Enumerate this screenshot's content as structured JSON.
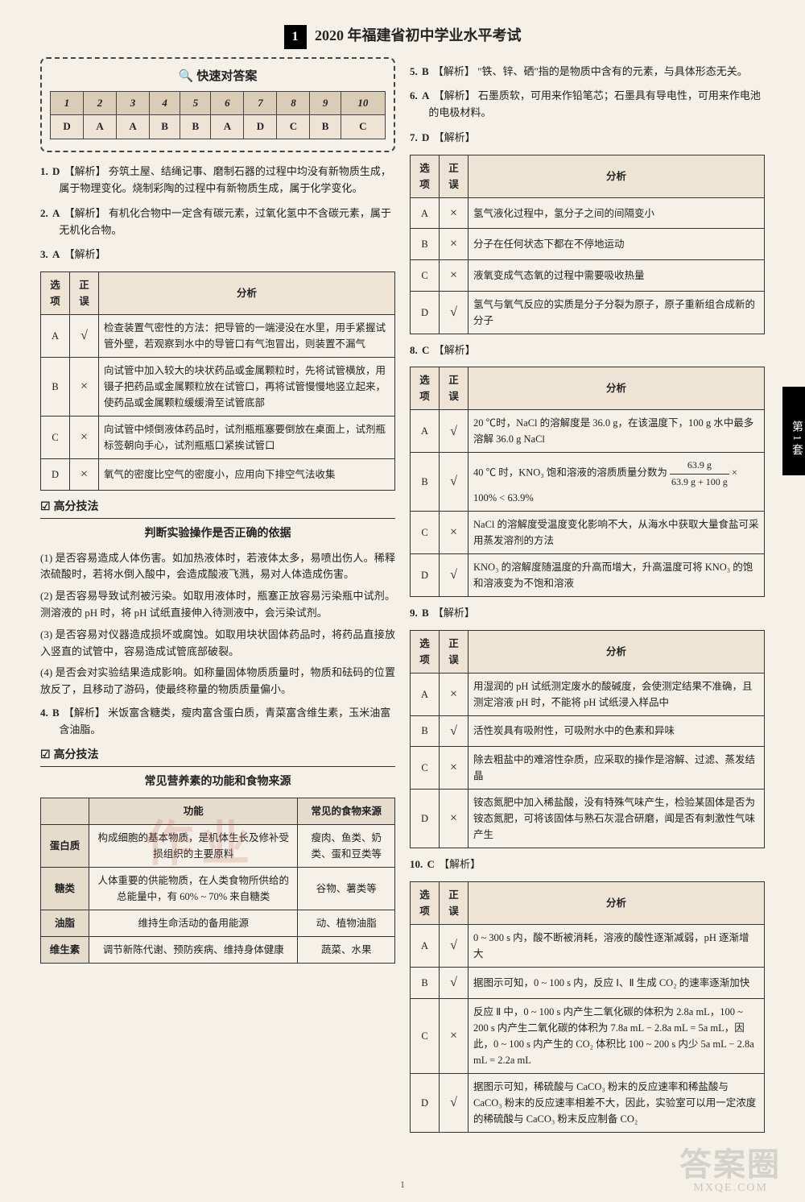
{
  "page": {
    "tag": "1",
    "title": "2020 年福建省初中学业水平考试",
    "footer": "1",
    "side_tab": "第1套"
  },
  "answer_card": {
    "title": "快速对答案",
    "numbers": [
      "1",
      "2",
      "3",
      "4",
      "5",
      "6",
      "7",
      "8",
      "9",
      "10"
    ],
    "answers": [
      "D",
      "A",
      "A",
      "B",
      "B",
      "A",
      "D",
      "C",
      "B",
      "C"
    ]
  },
  "items_left": {
    "q1": {
      "num": "1.",
      "ans": "D",
      "ex": "【解析】",
      "text": "夯筑土屋、结绳记事、磨制石器的过程中均没有新物质生成，属于物理变化。烧制彩陶的过程中有新物质生成，属于化学变化。"
    },
    "q2": {
      "num": "2.",
      "ans": "A",
      "ex": "【解析】",
      "text": "有机化合物中一定含有碳元素，过氧化氢中不含碳元素，属于无机化合物。"
    },
    "q3": {
      "num": "3.",
      "ans": "A",
      "ex": "【解析】"
    },
    "q4": {
      "num": "4.",
      "ans": "B",
      "ex": "【解析】",
      "text": "米饭富含糖类，瘦肉富含蛋白质，青菜富含维生素，玉米油富含油脂。"
    }
  },
  "table3": {
    "headers": [
      "选项",
      "正误",
      "分析"
    ],
    "rows": [
      {
        "opt": "A",
        "mark": "√",
        "text": "检查装置气密性的方法：把导管的一端浸没在水里，用手紧握试管外壁，若观察到水中的导管口有气泡冒出，则装置不漏气"
      },
      {
        "opt": "B",
        "mark": "×",
        "text": "向试管中加入较大的块状药品或金属颗粒时，先将试管横放，用镊子把药品或金属颗粒放在试管口，再将试管慢慢地竖立起来，使药品或金属颗粒缓缓滑至试管底部"
      },
      {
        "opt": "C",
        "mark": "×",
        "text": "向试管中倾倒液体药品时，试剂瓶瓶塞要倒放在桌面上，试剂瓶标签朝向手心，试剂瓶瓶口紧挨试管口"
      },
      {
        "opt": "D",
        "mark": "×",
        "text": "氧气的密度比空气的密度小，应用向下排空气法收集"
      }
    ]
  },
  "tips1": {
    "section": "高分技法",
    "title": "判断实验操作是否正确的依据",
    "paras": [
      "(1) 是否容易造成人体伤害。如加热液体时，若液体太多，易喷出伤人。稀释浓硫酸时，若将水倒入酸中，会造成酸液飞溅，易对人体造成伤害。",
      "(2) 是否容易导致试剂被污染。如取用液体时，瓶塞正放容易污染瓶中试剂。测溶液的 pH 时，将 pH 试纸直接伸入待测液中，会污染试剂。",
      "(3) 是否容易对仪器造成损坏或腐蚀。如取用块状固体药品时，将药品直接放入竖直的试管中，容易造成试管底部破裂。",
      "(4) 是否会对实验结果造成影响。如称量固体物质质量时，物质和砝码的位置放反了，且移动了游码，使最终称量的物质质量偏小。"
    ]
  },
  "tips2": {
    "section": "高分技法",
    "title": "常见营养素的功能和食物来源"
  },
  "nutrient": {
    "headers": [
      "",
      "功能",
      "常见的食物来源"
    ],
    "rows": [
      {
        "name": "蛋白质",
        "func": "构成细胞的基本物质，是机体生长及修补受损组织的主要原料",
        "src": "瘦肉、鱼类、奶类、蛋和豆类等"
      },
      {
        "name": "糖类",
        "func": "人体重要的供能物质，在人类食物所供给的总能量中，有 60% ~ 70% 来自糖类",
        "src": "谷物、薯类等"
      },
      {
        "name": "油脂",
        "func": "维持生命活动的备用能源",
        "src": "动、植物油脂"
      },
      {
        "name": "维生素",
        "func": "调节新陈代谢、预防疾病、维持身体健康",
        "src": "蔬菜、水果"
      }
    ]
  },
  "items_right": {
    "q5": {
      "num": "5.",
      "ans": "B",
      "ex": "【解析】",
      "text": "\"铁、锌、硒\"指的是物质中含有的元素，与具体形态无关。"
    },
    "q6": {
      "num": "6.",
      "ans": "A",
      "ex": "【解析】",
      "text": "石墨质软，可用来作铅笔芯；石墨具有导电性，可用来作电池的电极材料。"
    },
    "q7": {
      "num": "7.",
      "ans": "D",
      "ex": "【解析】"
    },
    "q8": {
      "num": "8.",
      "ans": "C",
      "ex": "【解析】"
    },
    "q9": {
      "num": "9.",
      "ans": "B",
      "ex": "【解析】"
    },
    "q10": {
      "num": "10.",
      "ans": "C",
      "ex": "【解析】"
    }
  },
  "table7": {
    "headers": [
      "选项",
      "正误",
      "分析"
    ],
    "rows": [
      {
        "opt": "A",
        "mark": "×",
        "text": "氢气液化过程中，氢分子之间的间隔变小"
      },
      {
        "opt": "B",
        "mark": "×",
        "text": "分子在任何状态下都在不停地运动"
      },
      {
        "opt": "C",
        "mark": "×",
        "text": "液氧变成气态氧的过程中需要吸收热量"
      },
      {
        "opt": "D",
        "mark": "√",
        "text": "氢气与氧气反应的实质是分子分裂为原子，原子重新组合成新的分子"
      }
    ]
  },
  "table8": {
    "headers": [
      "选项",
      "正误",
      "分析"
    ],
    "rows": [
      {
        "opt": "A",
        "mark": "√",
        "text": "20 ℃时，NaCl 的溶解度是 36.0 g，在该温度下，100 g 水中最多溶解 36.0 g NaCl"
      },
      {
        "opt": "B",
        "mark": "√",
        "text_pre": "40 ℃ 时，KNO₃ 饱和溶液的溶质质量分数为 ",
        "frac_top": "63.9 g",
        "frac_bot": "63.9 g + 100 g",
        "text_post": " × 100% < 63.9%"
      },
      {
        "opt": "C",
        "mark": "×",
        "text": "NaCl 的溶解度受温度变化影响不大，从海水中获取大量食盐可采用蒸发溶剂的方法"
      },
      {
        "opt": "D",
        "mark": "√",
        "text": "KNO₃ 的溶解度随温度的升高而增大，升高温度可将 KNO₃ 的饱和溶液变为不饱和溶液"
      }
    ]
  },
  "table9": {
    "headers": [
      "选项",
      "正误",
      "分析"
    ],
    "rows": [
      {
        "opt": "A",
        "mark": "×",
        "text": "用湿润的 pH 试纸测定废水的酸碱度，会使测定结果不准确，且测定溶液 pH 时，不能将 pH 试纸浸入样品中"
      },
      {
        "opt": "B",
        "mark": "√",
        "text": "活性炭具有吸附性，可吸附水中的色素和异味"
      },
      {
        "opt": "C",
        "mark": "×",
        "text": "除去粗盐中的难溶性杂质，应采取的操作是溶解、过滤、蒸发结晶"
      },
      {
        "opt": "D",
        "mark": "×",
        "text": "铵态氮肥中加入稀盐酸，没有特殊气味产生，检验某固体是否为铵态氮肥，可将该固体与熟石灰混合研磨，闻是否有刺激性气味产生"
      }
    ]
  },
  "table10": {
    "headers": [
      "选项",
      "正误",
      "分析"
    ],
    "rows": [
      {
        "opt": "A",
        "mark": "√",
        "text": "0 ~ 300 s 内，酸不断被消耗，溶液的酸性逐渐减弱，pH 逐渐增大"
      },
      {
        "opt": "B",
        "mark": "√",
        "text": "据图示可知，0 ~ 100 s 内，反应 Ⅰ、Ⅱ 生成 CO₂ 的速率逐渐加快"
      },
      {
        "opt": "C",
        "mark": "×",
        "text": "反应 Ⅱ 中，0 ~ 100 s 内产生二氧化碳的体积为 2.8a mL，100 ~ 200 s 内产生二氧化碳的体积为 7.8a mL − 2.8a mL = 5a mL，因此，0 ~ 100 s 内产生的 CO₂ 体积比 100 ~ 200 s 内少 5a mL − 2.8a mL = 2.2a mL"
      },
      {
        "opt": "D",
        "mark": "√",
        "text": "据图示可知，稀硫酸与 CaCO₃ 粉末的反应速率和稀盐酸与 CaCO₃ 粉末的反应速率相差不大，因此，实验室可以用一定浓度的稀硫酸与 CaCO₃ 粉末反应制备 CO₂"
      }
    ]
  },
  "watermark": {
    "main": "答案圈",
    "sub": "MXQE.COM",
    "center": "作业"
  }
}
